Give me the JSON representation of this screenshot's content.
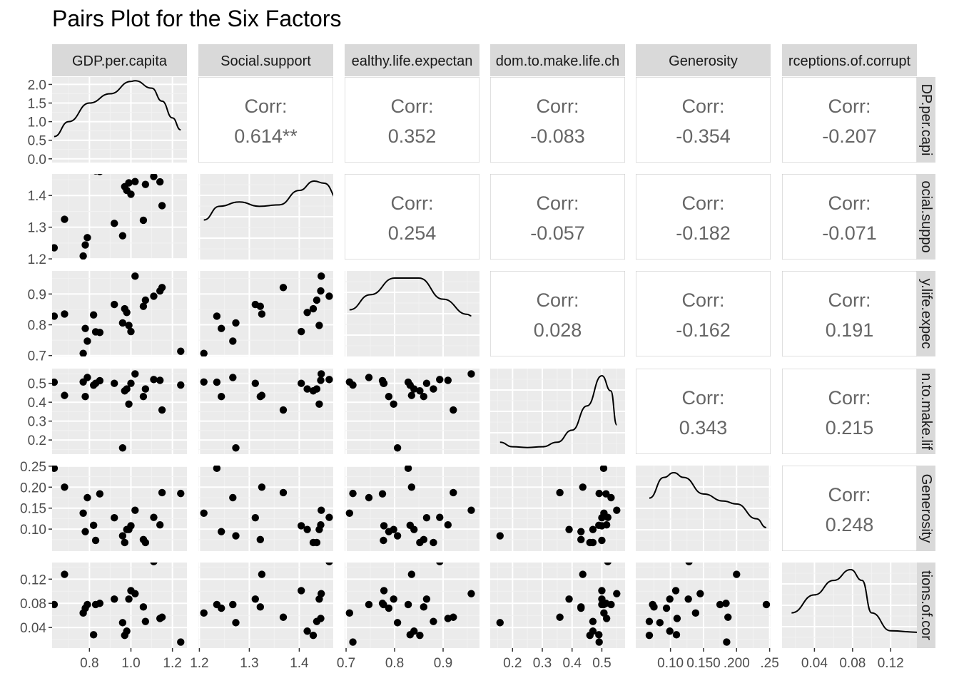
{
  "chart_data": {
    "type": "scatter",
    "title": "Pairs Plot for the Six Factors",
    "variables": [
      "GDP.per.capita",
      "Social.support",
      "Healthy.life.expectancy",
      "Freedom.to.make.life.choices",
      "Generosity",
      "Perceptions.of.corruption"
    ],
    "strip_labels_top": [
      "GDP.per.capita",
      "Social.support",
      "ealthy.life.expectan",
      "dom.to.make.life.ch",
      "Generosity",
      "rceptions.of.corrupt"
    ],
    "strip_labels_right": [
      "DP.per.capi",
      "ocial.suppo",
      "y.life.expec",
      "n.to.make.lif",
      "Generosity",
      "tions.of.cor"
    ],
    "corr_label": "Corr:",
    "correlations": [
      {
        "row": 0,
        "col": 1,
        "value": "0.614**"
      },
      {
        "row": 0,
        "col": 2,
        "value": "0.352"
      },
      {
        "row": 0,
        "col": 3,
        "value": "-0.083"
      },
      {
        "row": 0,
        "col": 4,
        "value": "-0.354"
      },
      {
        "row": 0,
        "col": 5,
        "value": "-0.207"
      },
      {
        "row": 1,
        "col": 2,
        "value": "0.254"
      },
      {
        "row": 1,
        "col": 3,
        "value": "-0.057"
      },
      {
        "row": 1,
        "col": 4,
        "value": "-0.182"
      },
      {
        "row": 1,
        "col": 5,
        "value": "-0.071"
      },
      {
        "row": 2,
        "col": 3,
        "value": "0.028"
      },
      {
        "row": 2,
        "col": 4,
        "value": "-0.162"
      },
      {
        "row": 2,
        "col": 5,
        "value": "0.191"
      },
      {
        "row": 3,
        "col": 4,
        "value": "0.343"
      },
      {
        "row": 3,
        "col": 5,
        "value": "0.215"
      },
      {
        "row": 4,
        "col": 5,
        "value": "0.248"
      }
    ],
    "x_axes": [
      {
        "range": [
          0.62,
          1.27
        ],
        "ticks": [
          0.8,
          1.0,
          1.2
        ],
        "tick_labels": [
          "0.8",
          "1.0",
          "1.2"
        ]
      },
      {
        "range": [
          1.198,
          1.468
        ],
        "ticks": [
          1.2,
          1.3,
          1.4
        ],
        "tick_labels": [
          "1.2",
          "1.3",
          "1.4"
        ]
      },
      {
        "range": [
          0.697,
          0.975
        ],
        "ticks": [
          0.7,
          0.8,
          0.9
        ],
        "tick_labels": [
          "0.7",
          "0.8",
          "0.9"
        ]
      },
      {
        "range": [
          0.125,
          0.578
        ],
        "ticks": [
          0.2,
          0.3,
          0.4,
          0.5
        ],
        "tick_labels": [
          "0.2",
          "0.3",
          "0.4",
          "0.5"
        ]
      },
      {
        "range": [
          0.0475,
          0.2515
        ],
        "ticks": [
          0.1,
          0.15,
          0.2,
          0.25
        ],
        "tick_labels": [
          "0.10",
          "0.150",
          ".200",
          ".25"
        ]
      },
      {
        "range": [
          0.006,
          0.1475
        ],
        "ticks": [
          0.04,
          0.08,
          0.12
        ],
        "tick_labels": [
          "0.04",
          "0.08",
          "0.12"
        ]
      }
    ],
    "y_axes": [
      {
        "range": [
          -0.1,
          2.2
        ],
        "ticks": [
          0,
          0.5,
          1.0,
          1.5,
          2.0
        ],
        "tick_labels": [
          "0.0",
          "0.5",
          "1.0",
          "1.5",
          "2.0"
        ]
      },
      {
        "range": [
          1.198,
          1.468
        ],
        "ticks": [
          1.2,
          1.3,
          1.4
        ],
        "tick_labels": [
          "1.2",
          "1.3",
          "1.4"
        ]
      },
      {
        "range": [
          0.697,
          0.975
        ],
        "ticks": [
          0.7,
          0.8,
          0.9
        ],
        "tick_labels": [
          "0.7",
          "0.8",
          "0.9"
        ]
      },
      {
        "range": [
          0.125,
          0.578
        ],
        "ticks": [
          0.2,
          0.3,
          0.4,
          0.5
        ],
        "tick_labels": [
          "0.2",
          "0.3",
          "0.4",
          "0.5"
        ]
      },
      {
        "range": [
          0.0475,
          0.2515
        ],
        "ticks": [
          0.1,
          0.15,
          0.2,
          0.25
        ],
        "tick_labels": [
          "0.10",
          "0.15",
          "0.20",
          "0.25"
        ]
      },
      {
        "range": [
          0.006,
          0.1475
        ],
        "ticks": [
          0.04,
          0.08,
          0.12
        ],
        "tick_labels": [
          "0.04",
          "0.08",
          "0.12"
        ]
      }
    ],
    "observations": [
      {
        "gdp": 0.63,
        "social": 1.235,
        "health": 0.828,
        "freedom": 0.506,
        "generosity": 0.245,
        "corruption": 0.078
      },
      {
        "gdp": 0.68,
        "social": 1.325,
        "health": 0.835,
        "freedom": 0.436,
        "generosity": 0.2,
        "corruption": 0.128
      },
      {
        "gdp": 0.77,
        "social": 1.209,
        "health": 0.707,
        "freedom": 0.507,
        "generosity": 0.138,
        "corruption": 0.064
      },
      {
        "gdp": 0.78,
        "social": 1.244,
        "health": 0.788,
        "freedom": 0.43,
        "generosity": 0.094,
        "corruption": 0.072
      },
      {
        "gdp": 0.79,
        "social": 1.267,
        "health": 0.747,
        "freedom": 0.531,
        "generosity": 0.175,
        "corruption": 0.078
      },
      {
        "gdp": 0.82,
        "social": 1.48,
        "health": 0.832,
        "freedom": 0.49,
        "generosity": 0.109,
        "corruption": 0.028
      },
      {
        "gdp": 0.83,
        "social": 1.478,
        "health": 0.777,
        "freedom": 0.5,
        "generosity": 0.073,
        "corruption": 0.078
      },
      {
        "gdp": 0.85,
        "social": 1.476,
        "health": 0.775,
        "freedom": 0.514,
        "generosity": 0.184,
        "corruption": 0.08
      },
      {
        "gdp": 0.92,
        "social": 1.312,
        "health": 0.866,
        "freedom": 0.5,
        "generosity": 0.127,
        "corruption": 0.087
      },
      {
        "gdp": 0.96,
        "social": 1.273,
        "health": 0.806,
        "freedom": 0.158,
        "generosity": 0.084,
        "corruption": 0.048
      },
      {
        "gdp": 0.97,
        "social": 1.428,
        "health": 0.852,
        "freedom": 0.46,
        "generosity": 0.068,
        "corruption": 0.027
      },
      {
        "gdp": 0.98,
        "social": 1.416,
        "health": 0.84,
        "freedom": 0.47,
        "generosity": 0.099,
        "corruption": 0.034
      },
      {
        "gdp": 0.99,
        "social": 1.44,
        "health": 0.798,
        "freedom": 0.39,
        "generosity": 0.099,
        "corruption": 0.087
      },
      {
        "gdp": 1.0,
        "social": 1.404,
        "health": 0.778,
        "freedom": 0.5,
        "generosity": 0.108,
        "corruption": 0.101
      },
      {
        "gdp": 1.02,
        "social": 1.444,
        "health": 0.958,
        "freedom": 0.55,
        "generosity": 0.145,
        "corruption": 0.096
      },
      {
        "gdp": 1.06,
        "social": 1.322,
        "health": 0.86,
        "freedom": 0.43,
        "generosity": 0.075,
        "corruption": 0.074
      },
      {
        "gdp": 1.07,
        "social": 1.435,
        "health": 0.88,
        "freedom": 0.47,
        "generosity": 0.068,
        "corruption": 0.05
      },
      {
        "gdp": 1.11,
        "social": 1.46,
        "health": 0.893,
        "freedom": 0.52,
        "generosity": 0.128,
        "corruption": 0.149
      },
      {
        "gdp": 1.14,
        "social": 1.443,
        "health": 0.91,
        "freedom": 0.516,
        "generosity": 0.11,
        "corruption": 0.055
      },
      {
        "gdp": 1.15,
        "social": 1.368,
        "health": 0.921,
        "freedom": 0.359,
        "generosity": 0.187,
        "corruption": 0.057
      },
      {
        "gdp": 1.24,
        "social": 1.48,
        "health": 0.714,
        "freedom": 0.491,
        "generosity": 0.185,
        "corruption": 0.016
      }
    ],
    "densities": [
      {
        "x": [
          0.63,
          0.7,
          0.8,
          0.9,
          1.0,
          1.02,
          1.1,
          1.15,
          1.2,
          1.24
        ],
        "y": [
          0.6,
          1.0,
          1.5,
          1.75,
          2.08,
          2.1,
          1.9,
          1.55,
          1.1,
          0.78
        ]
      },
      {
        "x": [
          1.209,
          1.24,
          1.28,
          1.32,
          1.36,
          1.4,
          1.43,
          1.45,
          1.48
        ],
        "y": [
          0.51,
          0.7,
          0.76,
          0.7,
          0.72,
          0.92,
          1.05,
          1.02,
          0.78
        ]
      },
      {
        "x": [
          0.707,
          0.75,
          0.8,
          0.85,
          0.9,
          0.95,
          0.958
        ],
        "y": [
          0.58,
          0.78,
          1.0,
          1.0,
          0.72,
          0.52,
          0.5
        ]
      },
      {
        "x": [
          0.158,
          0.2,
          0.25,
          0.3,
          0.35,
          0.4,
          0.45,
          0.5,
          0.53,
          0.55
        ],
        "y": [
          0.12,
          0.06,
          0.05,
          0.06,
          0.12,
          0.28,
          0.6,
          1.0,
          0.8,
          0.35
        ]
      },
      {
        "x": [
          0.068,
          0.09,
          0.105,
          0.12,
          0.15,
          0.18,
          0.2,
          0.23,
          0.245
        ],
        "y": [
          0.85,
          1.2,
          1.28,
          1.2,
          0.92,
          0.8,
          0.75,
          0.5,
          0.35
        ]
      },
      {
        "x": [
          0.016,
          0.04,
          0.06,
          0.078,
          0.09,
          0.1,
          0.12,
          0.149
        ],
        "y": [
          0.45,
          0.7,
          0.9,
          1.05,
          0.9,
          0.45,
          0.2,
          0.18
        ]
      }
    ],
    "grid": true,
    "legend": "none"
  }
}
